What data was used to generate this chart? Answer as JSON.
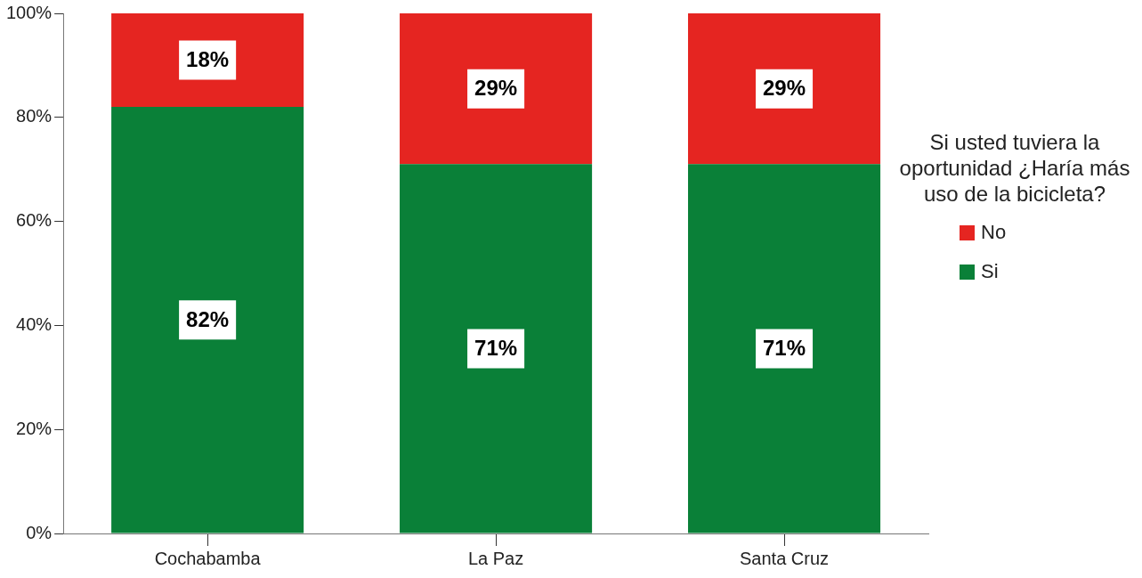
{
  "chart_data": {
    "type": "bar",
    "stacked": true,
    "categories": [
      "Cochabamba",
      "La Paz",
      "Santa Cruz"
    ],
    "series": [
      {
        "name": "Si",
        "color": "#0a8038",
        "values": [
          82,
          71,
          71
        ],
        "value_labels": [
          "82%",
          "71%",
          "71%"
        ]
      },
      {
        "name": "No",
        "color": "#e52521",
        "values": [
          18,
          29,
          29
        ],
        "value_labels": [
          "18%",
          "29%",
          "29%"
        ]
      }
    ],
    "legend_title": "Si usted tuviera la oportunidad ¿Haría más uso de la bicicleta?",
    "legend": "right",
    "ylim": [
      0,
      100
    ],
    "yticks": [
      {
        "value": 0,
        "label": "0%"
      },
      {
        "value": 20,
        "label": "20%"
      },
      {
        "value": 40,
        "label": "40%"
      },
      {
        "value": 60,
        "label": "60%"
      },
      {
        "value": 80,
        "label": "80%"
      },
      {
        "value": 100,
        "label": "100%"
      }
    ],
    "grid": false
  }
}
